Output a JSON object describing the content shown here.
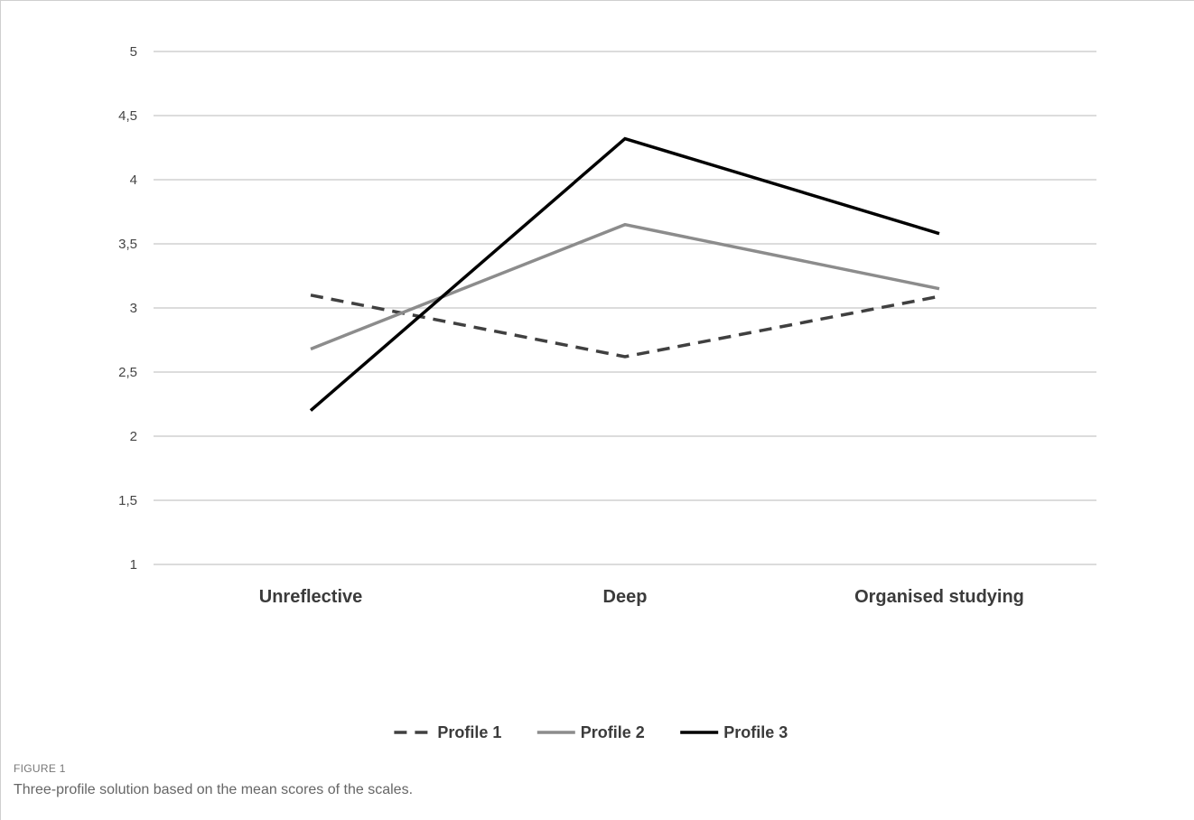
{
  "figure": {
    "label": "FIGURE 1",
    "caption": "Three-profile solution based on the mean scores of the scales."
  },
  "chart_data": {
    "type": "line",
    "title": "",
    "xlabel": "",
    "ylabel": "",
    "categories": [
      "Unreflective",
      "Deep",
      "Organised studying"
    ],
    "yticks": [
      "1",
      "1,5",
      "2",
      "2,5",
      "3",
      "3,5",
      "4",
      "4,5",
      "5"
    ],
    "ylim": [
      1,
      5
    ],
    "grid": true,
    "legend_position": "bottom",
    "series": [
      {
        "name": "Profile 1",
        "values": [
          3.1,
          2.62,
          3.09
        ],
        "color": "#404040",
        "style": "dashed"
      },
      {
        "name": "Profile 2",
        "values": [
          2.68,
          3.65,
          3.15
        ],
        "color": "#8c8c8c",
        "style": "solid"
      },
      {
        "name": "Profile 3",
        "values": [
          2.2,
          4.32,
          3.58
        ],
        "color": "#000000",
        "style": "solid"
      }
    ]
  }
}
